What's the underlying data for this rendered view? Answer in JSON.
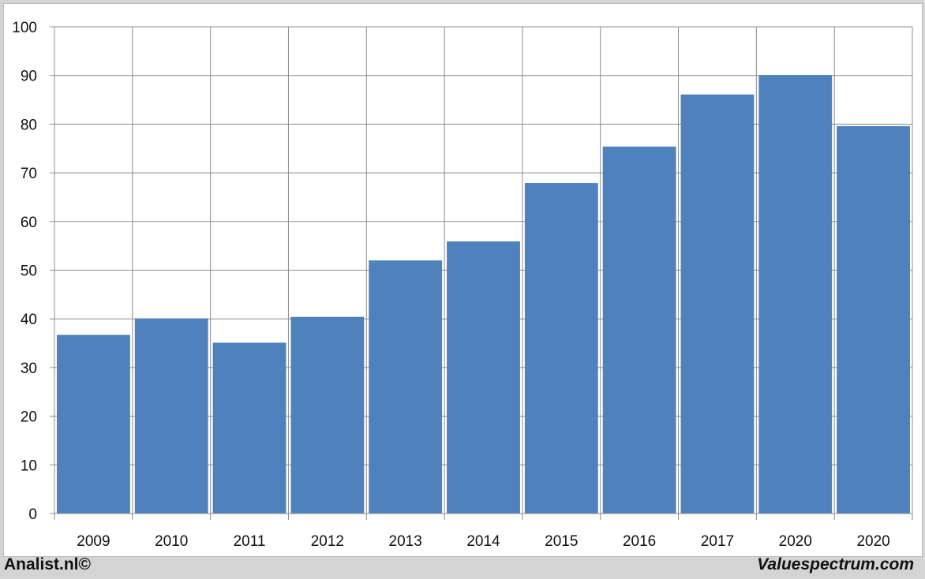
{
  "chart_data": {
    "type": "bar",
    "categories": [
      "2009",
      "2010",
      "2011",
      "2012",
      "2013",
      "2014",
      "2015",
      "2016",
      "2017",
      "2020",
      "2020"
    ],
    "values": [
      36.7,
      40.1,
      35.1,
      40.4,
      52.0,
      55.9,
      67.9,
      75.4,
      86.1,
      90.1,
      79.6
    ],
    "title": "",
    "xlabel": "",
    "ylabel": "",
    "ylim": [
      0,
      100
    ],
    "yticks": [
      0,
      10,
      20,
      30,
      40,
      50,
      60,
      70,
      80,
      90,
      100
    ],
    "grid": true,
    "bar_color": "#4f81bd"
  },
  "footer": {
    "left": "Analist.nl©",
    "right": "Valuespectrum.com"
  }
}
